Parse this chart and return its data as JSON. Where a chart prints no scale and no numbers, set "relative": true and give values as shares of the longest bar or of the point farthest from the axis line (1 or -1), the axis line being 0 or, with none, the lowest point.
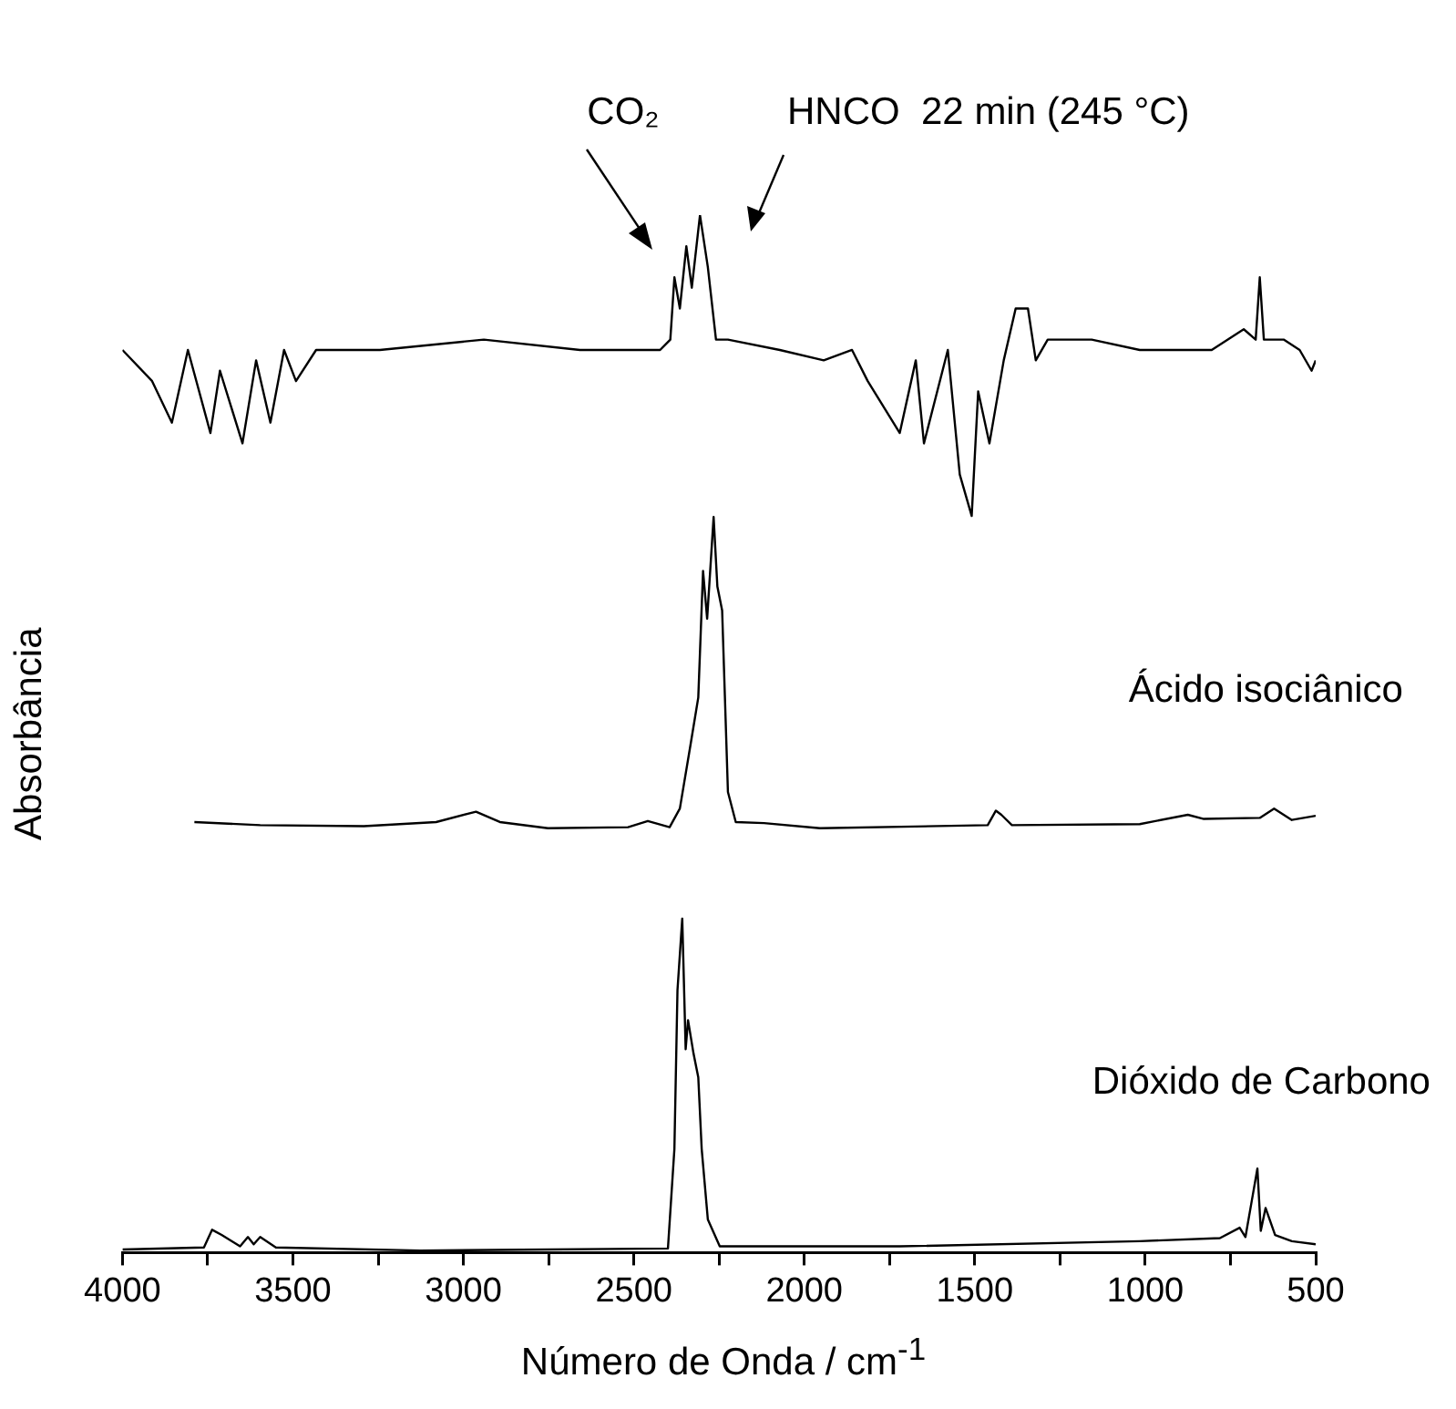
{
  "chart_data": {
    "type": "line",
    "relative": true,
    "xlabel": "Número de Onda / cm$^{-1}$",
    "ylabel": "Absorbância",
    "legend": false,
    "grid": false,
    "marker": "none",
    "line_style": "solid",
    "xlim": [
      4000,
      500
    ],
    "xticks": [
      4000,
      {
        "value": 3750,
        "label": null
      },
      3500,
      {
        "value": 3250,
        "label": null
      },
      3000,
      {
        "value": 2750,
        "label": null
      },
      2500,
      {
        "value": 2250,
        "label": null
      },
      2000,
      {
        "value": 1750,
        "label": null
      },
      1500,
      {
        "value": 1250,
        "label": null
      },
      1000,
      {
        "value": 750,
        "label": null
      },
      500
    ],
    "annotations": [
      "CO₂",
      "HNCO  22 min (245 °C)"
    ],
    "series": [
      {
        "color": "#000000",
        "x": [
          4000,
          3913,
          3855,
          3808,
          3742,
          3714,
          3648,
          3608,
          3566,
          3526,
          3491,
          3432,
          3245,
          2940,
          2658,
          2423,
          2393,
          2381,
          2365,
          2346,
          2330,
          2306,
          2283,
          2259,
          2224,
          2072,
          1943,
          1860,
          1814,
          1720,
          1673,
          1649,
          1579,
          1544,
          1509,
          1490,
          1457,
          1415,
          1380,
          1344,
          1321,
          1286,
          1157,
          1016,
          805,
          711,
          676,
          664,
          652,
          594,
          547,
          512,
          500
        ],
        "values": [
          0.87,
          0.84,
          0.8,
          0.87,
          0.79,
          0.85,
          0.78,
          0.86,
          0.8,
          0.87,
          0.84,
          0.87,
          0.87,
          0.88,
          0.87,
          0.87,
          0.88,
          0.94,
          0.91,
          0.97,
          0.93,
          1.0,
          0.95,
          0.88,
          0.88,
          0.87,
          0.86,
          0.87,
          0.84,
          0.79,
          0.86,
          0.78,
          0.87,
          0.75,
          0.71,
          0.83,
          0.78,
          0.86,
          0.91,
          0.91,
          0.86,
          0.88,
          0.88,
          0.87,
          0.87,
          0.89,
          0.88,
          0.94,
          0.88,
          0.88,
          0.87,
          0.85,
          0.86
        ]
      },
      {
        "name": "Ácido isociânico",
        "color": "#000000",
        "x": [
          3789,
          3596,
          3292,
          3080,
          2963,
          2893,
          2752,
          2517,
          2459,
          2395,
          2365,
          2334,
          2311,
          2297,
          2285,
          2266,
          2255,
          2241,
          2224,
          2201,
          2118,
          1954,
          1462,
          1438,
          1422,
          1391,
          1016,
          875,
          828,
          664,
          622,
          570,
          500
        ],
        "values": [
          0.415,
          0.412,
          0.411,
          0.415,
          0.425,
          0.415,
          0.409,
          0.41,
          0.416,
          0.41,
          0.428,
          0.489,
          0.535,
          0.657,
          0.611,
          0.709,
          0.642,
          0.619,
          0.444,
          0.415,
          0.414,
          0.409,
          0.412,
          0.426,
          0.422,
          0.412,
          0.413,
          0.422,
          0.418,
          0.419,
          0.428,
          0.417,
          0.421
        ]
      },
      {
        "name": "Dióxido de Carbono",
        "color": "#000000",
        "x": [
          4000,
          3761,
          3737,
          3709,
          3655,
          3632,
          3615,
          3596,
          3550,
          3127,
          2400,
          2381,
          2372,
          2358,
          2348,
          2341,
          2325,
          2311,
          2301,
          2283,
          2248,
          1720,
          1016,
          781,
          723,
          706,
          689,
          671,
          661,
          647,
          619,
          570,
          500
        ],
        "values": [
          0.003,
          0.005,
          0.022,
          0.017,
          0.006,
          0.015,
          0.008,
          0.015,
          0.005,
          0.002,
          0.004,
          0.1,
          0.253,
          0.322,
          0.196,
          0.224,
          0.192,
          0.169,
          0.1,
          0.032,
          0.006,
          0.006,
          0.011,
          0.014,
          0.024,
          0.015,
          0.047,
          0.081,
          0.021,
          0.043,
          0.017,
          0.011,
          0.008
        ]
      }
    ]
  }
}
